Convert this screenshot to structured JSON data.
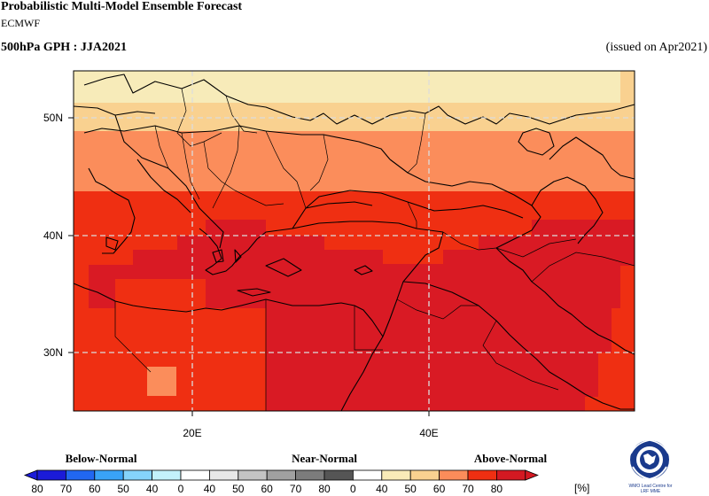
{
  "header": {
    "title": "Probabilistic Multi-Model Ensemble Forecast",
    "model": "ECMWF",
    "variable": "500hPa GPH : JJA2021",
    "issued": "(issued on Apr2021)"
  },
  "map": {
    "lat_labels": [
      "50N",
      "40N",
      "30N"
    ],
    "lon_labels": [
      "20E",
      "40E"
    ],
    "bands_description_colors": [
      "#f7ebb9",
      "#f9d190",
      "#fb8d5b",
      "#ef2f12",
      "#d91a24"
    ]
  },
  "legend": {
    "categories": [
      "Below-Normal",
      "Near-Normal",
      "Above-Normal"
    ],
    "ticks": [
      "80",
      "70",
      "60",
      "50",
      "40",
      "0",
      "40",
      "50",
      "60",
      "70",
      "80",
      "0",
      "40",
      "50",
      "60",
      "70",
      "80"
    ],
    "unit": "[%]",
    "below_colors": [
      "#1b1bd8",
      "#2167f1",
      "#39a3f7",
      "#85d3fb",
      "#c3f2fb"
    ],
    "near_colors": [
      "#e8e8e8",
      "#c4c4c4",
      "#a0a0a0",
      "#7c7c7c",
      "#555555"
    ],
    "above_colors": [
      "#f9ebb8",
      "#f9d190",
      "#fb8c5a",
      "#ef2f12",
      "#d41922"
    ],
    "blank_color": "#ffffff"
  },
  "logo": {
    "caption_line1": "WMO Lead Centre for",
    "caption_line2": "LRF MME"
  }
}
